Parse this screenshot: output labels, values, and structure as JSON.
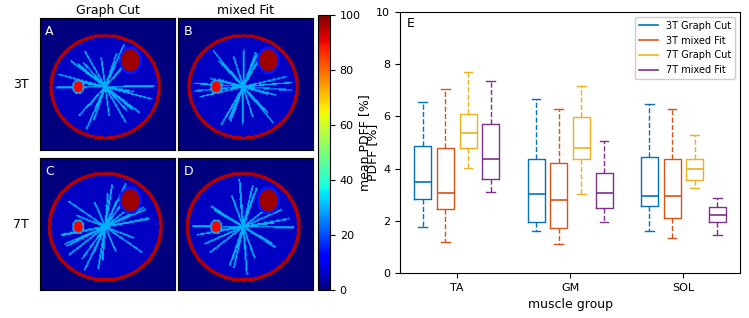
{
  "chart_data": [
    {
      "type": "image",
      "columns": [
        "Graph Cut",
        "mixed Fit"
      ],
      "rows": [
        "3T",
        "7T"
      ],
      "panels": [
        "A",
        "B",
        "C",
        "D"
      ],
      "colorbar": {
        "label": "PDFF [%]",
        "range": [
          0,
          100
        ],
        "ticks": [
          0,
          20,
          40,
          60,
          80,
          100
        ]
      }
    },
    {
      "type": "box",
      "panel": "E",
      "x_label": "muscle group",
      "y_label": "mean PDFF [%]",
      "categories": [
        "TA",
        "GM",
        "SOL"
      ],
      "ylim": [
        0,
        10
      ],
      "yticks": [
        0,
        2,
        4,
        6,
        8,
        10
      ],
      "legend": "upper right",
      "series": [
        {
          "name": "3T Graph Cut",
          "color": "#0072bd",
          "whislo": [
            1.77,
            1.62,
            1.62
          ],
          "q1": [
            2.85,
            1.96,
            2.58
          ],
          "median": [
            3.5,
            3.04,
            2.96
          ],
          "q3": [
            4.88,
            4.38,
            4.46
          ],
          "whishi": [
            6.54,
            6.65,
            6.46
          ]
        },
        {
          "name": "3T mixed Fit",
          "color": "#d95319",
          "whislo": [
            1.19,
            1.12,
            1.35
          ],
          "q1": [
            2.46,
            1.73,
            2.12
          ],
          "median": [
            3.08,
            2.8,
            2.96
          ],
          "q3": [
            4.8,
            4.23,
            4.35
          ],
          "whishi": [
            7.04,
            6.3,
            6.27
          ]
        },
        {
          "name": "7T Graph Cut",
          "color": "#edb120",
          "whislo": [
            4.04,
            3.04,
            3.27
          ],
          "q1": [
            4.8,
            4.35,
            3.58
          ],
          "median": [
            5.35,
            4.8,
            4.0
          ],
          "q3": [
            6.08,
            5.96,
            4.38
          ],
          "whishi": [
            7.7,
            7.15,
            5.27
          ]
        },
        {
          "name": "7T mixed Fit",
          "color": "#7e2f8e",
          "whislo": [
            3.1,
            1.96,
            1.46
          ],
          "q1": [
            3.6,
            2.5,
            1.96
          ],
          "median": [
            4.38,
            3.08,
            2.23
          ],
          "q3": [
            5.7,
            3.85,
            2.54
          ],
          "whishi": [
            7.35,
            5.04,
            2.88
          ]
        }
      ]
    }
  ]
}
